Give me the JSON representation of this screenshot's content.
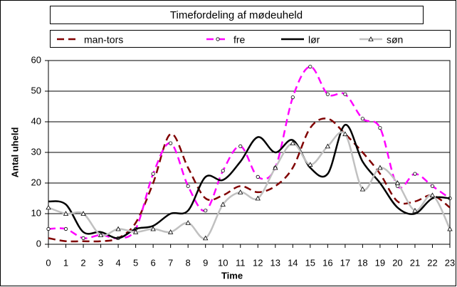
{
  "chart_data": {
    "type": "line",
    "title": "Timefordeling af mødeuheld",
    "x_label": "Time",
    "y_label": "Antal uheld",
    "x": [
      0,
      1,
      2,
      3,
      4,
      5,
      6,
      7,
      8,
      9,
      10,
      11,
      12,
      13,
      14,
      15,
      16,
      17,
      18,
      19,
      20,
      21,
      22,
      23
    ],
    "xlim": [
      0,
      23
    ],
    "xticks": [
      0,
      1,
      2,
      3,
      4,
      5,
      6,
      7,
      8,
      9,
      10,
      11,
      12,
      13,
      14,
      15,
      16,
      17,
      18,
      19,
      20,
      21,
      22,
      23
    ],
    "ylim": [
      0,
      60
    ],
    "yticks": [
      0,
      10,
      20,
      30,
      40,
      50,
      60
    ],
    "grid": true,
    "legend": "top",
    "series": [
      {
        "name": "man-tors",
        "color": "#800000",
        "dash": "dashed",
        "marker": "none",
        "values": [
          2,
          1,
          1,
          1,
          2,
          7,
          20,
          36,
          25,
          15,
          16,
          19,
          17,
          19,
          25,
          38,
          41,
          36,
          30,
          23,
          14,
          14,
          16,
          12
        ]
      },
      {
        "name": "fre",
        "color": "#ff00ff",
        "dash": "dashed",
        "marker": "circle",
        "values": [
          5,
          5,
          2,
          3,
          2,
          5,
          23,
          33,
          19,
          11,
          24,
          32,
          22,
          25,
          48,
          58,
          49,
          49,
          41,
          38,
          19,
          23,
          19,
          15
        ]
      },
      {
        "name": "lør",
        "color": "#000000",
        "dash": "solid",
        "marker": "none",
        "values": [
          14,
          13,
          4,
          4,
          2,
          5,
          6,
          10,
          11,
          22,
          21,
          27,
          35,
          30,
          34,
          25,
          23,
          39,
          27,
          20,
          12,
          10,
          15,
          15
        ]
      },
      {
        "name": "søn",
        "color": "#c0c0c0",
        "dash": "solid",
        "marker": "triangle",
        "values": [
          12,
          10,
          10,
          3,
          5,
          4,
          5,
          4,
          7,
          2,
          13,
          17,
          15,
          25,
          33,
          26,
          32,
          36,
          18,
          25,
          20,
          11,
          16,
          5
        ]
      }
    ]
  }
}
